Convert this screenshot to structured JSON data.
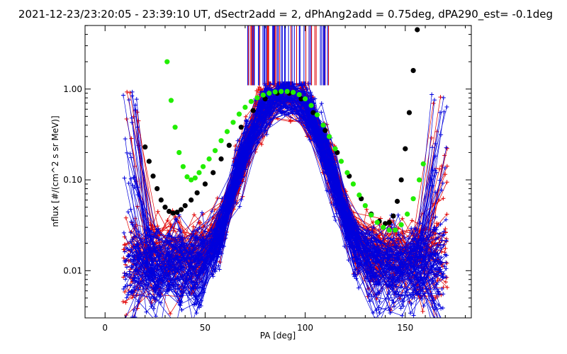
{
  "chart_data": {
    "type": "scatter",
    "title": "2021-12-23/23:20:05 - 23:39:10 UT, dSectr2add = 2, dPhAng2add = 0.75deg, dPA290_est=  -0.1deg",
    "xlabel": "PA [deg]",
    "ylabel": "nflux [#/(cm^2 s sr MeV)]",
    "xlim": [
      -10,
      183
    ],
    "ylim_log10": [
      -2.52,
      0.7
    ],
    "yscale": "log",
    "xticks": [
      0,
      50,
      100,
      150
    ],
    "xtick_labels": [
      "0",
      "50",
      "100",
      "150"
    ],
    "yticks": [
      0.01,
      0.1,
      1.0
    ],
    "ytick_labels": [
      "0.01",
      "0.10",
      "1.00"
    ],
    "colors": {
      "red": "#e00000",
      "blue": "#0000dd",
      "green": "#22ee00",
      "black": "#000000"
    },
    "series": [
      {
        "name": "green fit",
        "color": "#22ee00",
        "x": [
          31,
          33,
          35,
          37,
          39,
          41,
          43,
          45,
          47,
          49,
          52,
          55,
          58,
          61,
          64,
          67,
          70,
          73,
          76,
          79,
          82,
          85,
          88,
          91,
          94,
          97,
          100,
          103,
          106,
          109,
          112,
          115,
          118,
          121,
          124,
          127,
          130,
          133,
          136,
          139,
          142,
          145,
          148,
          151,
          154,
          157,
          159
        ],
        "y": [
          2.0,
          0.75,
          0.38,
          0.2,
          0.14,
          0.108,
          0.1,
          0.105,
          0.12,
          0.14,
          0.17,
          0.21,
          0.27,
          0.34,
          0.43,
          0.53,
          0.63,
          0.73,
          0.8,
          0.86,
          0.9,
          0.93,
          0.94,
          0.94,
          0.92,
          0.87,
          0.78,
          0.66,
          0.52,
          0.4,
          0.3,
          0.22,
          0.16,
          0.12,
          0.09,
          0.068,
          0.052,
          0.041,
          0.034,
          0.03,
          0.028,
          0.028,
          0.032,
          0.042,
          0.062,
          0.1,
          0.15
        ]
      },
      {
        "name": "black fit",
        "color": "#000000",
        "x": [
          20,
          22,
          24,
          26,
          28,
          30,
          32,
          34,
          36,
          38,
          40,
          43,
          46,
          50,
          54,
          58,
          62,
          68,
          74,
          80,
          86,
          92,
          98,
          104,
          110,
          116,
          122,
          128,
          133,
          137,
          140,
          142,
          144,
          146,
          148,
          150,
          152,
          154,
          156
        ],
        "y": [
          0.23,
          0.16,
          0.11,
          0.08,
          0.06,
          0.05,
          0.045,
          0.043,
          0.044,
          0.047,
          0.052,
          0.06,
          0.072,
          0.09,
          0.12,
          0.17,
          0.24,
          0.38,
          0.58,
          0.78,
          0.9,
          0.9,
          0.78,
          0.55,
          0.35,
          0.2,
          0.11,
          0.062,
          0.042,
          0.035,
          0.033,
          0.034,
          0.04,
          0.058,
          0.1,
          0.22,
          0.55,
          1.6,
          4.5
        ]
      },
      {
        "name": "red traces",
        "color": "#e00000",
        "x_pitch_bins": [
          13,
          24,
          35,
          46,
          57,
          68,
          79,
          90,
          101,
          112,
          123,
          134,
          145,
          156,
          167
        ],
        "example_y": [
          0.85,
          0.12,
          0.05,
          0.08,
          0.2,
          0.45,
          0.85,
          1.0,
          0.95,
          0.35,
          0.08,
          0.03,
          0.02,
          0.015,
          0.012
        ]
      },
      {
        "name": "blue traces",
        "color": "#0000dd",
        "x_pitch_bins": [
          13,
          24,
          35,
          46,
          57,
          68,
          79,
          90,
          101,
          112,
          123,
          134,
          145,
          156,
          167
        ],
        "example_y": [
          0.7,
          0.1,
          0.03,
          0.1,
          0.3,
          0.6,
          0.9,
          0.95,
          0.9,
          0.4,
          0.12,
          0.04,
          0.015,
          0.01,
          0.008
        ]
      }
    ]
  }
}
